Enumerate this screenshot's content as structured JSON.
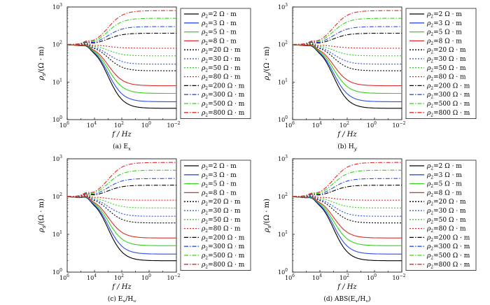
{
  "chart_data": [
    {
      "type": "line",
      "caption": "(a) E",
      "caption_sub": "x",
      "ylabel": "ρ",
      "ylabel_sub": "s",
      "ylabel_unit": "/(Ω · m)",
      "xlabel": "f / Hz",
      "xscale": "log",
      "yscale": "log",
      "xlim": [
        1000000,
        0.01
      ],
      "ylim": [
        1,
        1000
      ],
      "xticks": [
        "10",
        "6",
        "10",
        "4",
        "10",
        "2",
        "10",
        "0",
        "10",
        "-2"
      ],
      "xtick_base": "10",
      "xtick_exp": [
        "6",
        "4",
        "2",
        "0",
        "−2"
      ],
      "ytick_base": "10",
      "ytick_exp": [
        "0",
        "1",
        "2",
        "3"
      ],
      "legend_position": "right",
      "series_ref": "shared"
    },
    {
      "type": "line",
      "caption": "(b) H",
      "caption_sub": "y",
      "ylabel": "ρ",
      "ylabel_sub": "s",
      "ylabel_unit": "/(Ω · m)",
      "xlabel": "f / Hz",
      "xscale": "log",
      "yscale": "log",
      "xlim": [
        1000000,
        0.01
      ],
      "ylim": [
        1,
        1000
      ],
      "xtick_base": "10",
      "xtick_exp": [
        "6",
        "4",
        "2",
        "0",
        "−2"
      ],
      "ytick_base": "10",
      "ytick_exp": [
        "0",
        "1",
        "2",
        "3"
      ],
      "legend_position": "right",
      "series_ref": "shared"
    },
    {
      "type": "line",
      "caption": "(c) E",
      "caption_sub": "x",
      "caption_tail": "/H",
      "caption_sub2": "y",
      "ylabel": "ρ",
      "ylabel_sub": "s",
      "ylabel_unit": "/(Ω · m)",
      "xlabel": "f / Hz",
      "xscale": "log",
      "yscale": "log",
      "xlim": [
        1000000,
        0.01
      ],
      "ylim": [
        1,
        1000
      ],
      "xtick_base": "10",
      "xtick_exp": [
        "6",
        "4",
        "2",
        "0",
        "−2"
      ],
      "ytick_base": "10",
      "ytick_exp": [
        "0",
        "1",
        "2",
        "3"
      ],
      "legend_position": "right",
      "series_ref": "shared"
    },
    {
      "type": "line",
      "caption": "(d) ABS(E",
      "caption_sub": "x",
      "caption_tail": "/H",
      "caption_sub2": "y",
      "caption_end": ")",
      "ylabel": "ρ",
      "ylabel_sub": "s",
      "ylabel_unit": "/(Ω · m)",
      "xlabel": "f / Hz",
      "xscale": "log",
      "yscale": "log",
      "xlim": [
        1000000,
        0.01
      ],
      "ylim": [
        1,
        1000
      ],
      "xtick_base": "10",
      "xtick_exp": [
        "6",
        "4",
        "2",
        "0",
        "−2"
      ],
      "ytick_base": "10",
      "ytick_exp": [
        "0",
        "1",
        "2",
        "3"
      ],
      "legend_position": "right",
      "series_ref": "shared"
    }
  ],
  "shared_series": [
    {
      "name": "ρ2=2 Ω · m",
      "rho2": 2,
      "color": "#000000",
      "dash": "solid"
    },
    {
      "name": "ρ2=3 Ω · m",
      "rho2": 3,
      "color": "#2b4fe8",
      "dash": "solid"
    },
    {
      "name": "ρ2=5 Ω · m",
      "rho2": 5,
      "color": "#34d21c",
      "dash": "solid"
    },
    {
      "name": "ρ2=8 Ω · m",
      "rho2": 8,
      "color": "#e22a2a",
      "dash": "solid"
    },
    {
      "name": "ρ2=20 Ω · m",
      "rho2": 20,
      "color": "#000000",
      "dash": "dot"
    },
    {
      "name": "ρ2=30 Ω · m",
      "rho2": 30,
      "color": "#2b4fe8",
      "dash": "dot"
    },
    {
      "name": "ρ2=50 Ω · m",
      "rho2": 50,
      "color": "#34d21c",
      "dash": "dot"
    },
    {
      "name": "ρ2=80 Ω · m",
      "rho2": 80,
      "color": "#e22a2a",
      "dash": "dot"
    },
    {
      "name": "ρ2=200 Ω · m",
      "rho2": 200,
      "color": "#000000",
      "dash": "dashdot"
    },
    {
      "name": "ρ2=300 Ω · m",
      "rho2": 300,
      "color": "#2b4fe8",
      "dash": "dashdot"
    },
    {
      "name": "ρ2=500 Ω · m",
      "rho2": 500,
      "color": "#34d21c",
      "dash": "dashdot"
    },
    {
      "name": "ρ2=800 Ω · m",
      "rho2": 800,
      "color": "#e22a2a",
      "dash": "dashdot"
    }
  ],
  "model": {
    "rho_top": 100
  },
  "legend_labels": [
    {
      "pre": "ρ",
      "sub": "2",
      "post": "=2 Ω · m"
    },
    {
      "pre": "ρ",
      "sub": "2",
      "post": "=3 Ω · m"
    },
    {
      "pre": "ρ",
      "sub": "2",
      "post": "=5 Ω · m"
    },
    {
      "pre": "ρ",
      "sub": "2",
      "post": "=8 Ω · m"
    },
    {
      "pre": "ρ",
      "sub": "2",
      "post": "=20 Ω · m"
    },
    {
      "pre": "ρ",
      "sub": "2",
      "post": "=30 Ω · m"
    },
    {
      "pre": "ρ",
      "sub": "2",
      "post": "=50 Ω · m"
    },
    {
      "pre": "ρ",
      "sub": "2",
      "post": "=80 Ω · m"
    },
    {
      "pre": "ρ",
      "sub": "2",
      "post": "=200 Ω · m"
    },
    {
      "pre": "ρ",
      "sub": "2",
      "post": "=300 Ω · m"
    },
    {
      "pre": "ρ",
      "sub": "2",
      "post": "=500 Ω · m"
    },
    {
      "pre": "ρ",
      "sub": "2",
      "post": "=800 Ω · m"
    }
  ]
}
